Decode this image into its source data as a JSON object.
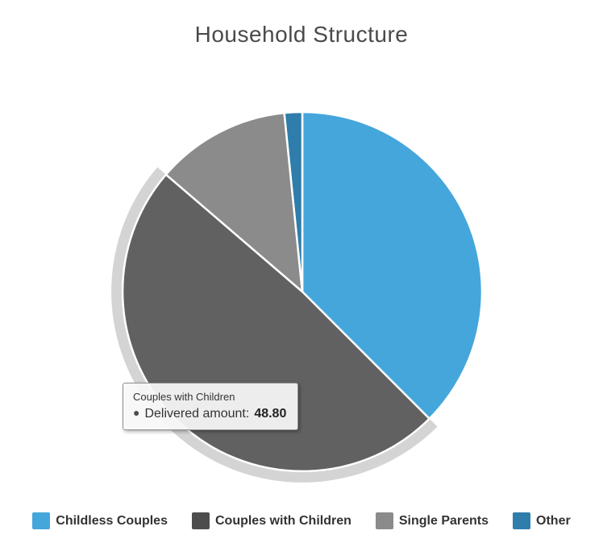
{
  "chart_data": {
    "type": "pie",
    "title": "Household Structure",
    "series_name": "Delivered amount",
    "start_angle": 0,
    "legend_position": "bottom",
    "background_color": "#ffffff",
    "slice_border_color": "#ffffff",
    "segments": [
      {
        "label": "Childless Couples",
        "value": 37.5,
        "color": "#45A6DC"
      },
      {
        "label": "Couples with Children",
        "value": 48.8,
        "color": "#4D4D4D"
      },
      {
        "label": "Single Parents",
        "value": 12.1,
        "color": "#8B8B8B"
      },
      {
        "label": "Other",
        "value": 1.6,
        "color": "#2E7DAB"
      }
    ],
    "hover": {
      "category": "Couples with Children",
      "slice_color": "#616161",
      "halo_color": "#D4D4D4"
    }
  },
  "tooltip": {
    "header": "Couples with Children",
    "bullet": "●",
    "bullet_color": "#4D4D4D",
    "series_label": "Delivered amount:",
    "value": "48.80"
  }
}
